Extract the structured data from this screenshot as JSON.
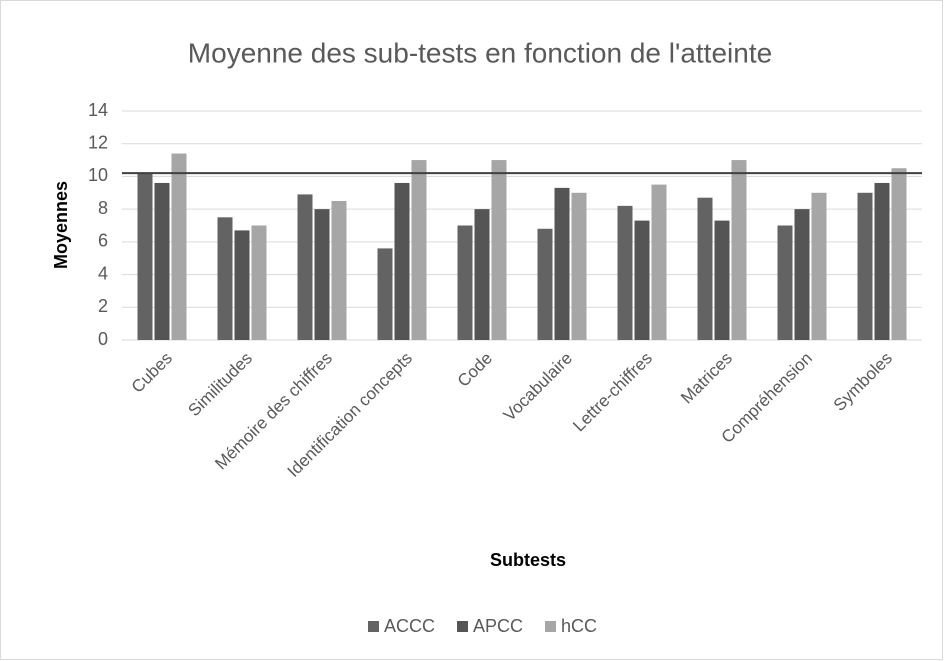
{
  "chart_data": {
    "type": "bar",
    "title": "Moyenne des sub-tests en fonction de l'atteinte",
    "x_label": "Subtests",
    "y_label": "Moyennes",
    "categories": [
      "Cubes",
      "Similitudes",
      "Mémoire des chiffres",
      "Identification concepts",
      "Code",
      "Vocabulaire",
      "Lettre-chiffres",
      "Matrices",
      "Compréhension",
      "Symboles"
    ],
    "series": [
      {
        "name": "ACCC",
        "color": "#636363",
        "values": [
          10.2,
          7.5,
          8.9,
          5.6,
          7.0,
          6.8,
          8.2,
          8.7,
          7.0,
          9.0
        ]
      },
      {
        "name": "APCC",
        "color": "#555555",
        "values": [
          9.6,
          6.7,
          8.0,
          9.6,
          8.0,
          9.3,
          7.3,
          7.3,
          8.0,
          9.6
        ]
      },
      {
        "name": "hCC",
        "color": "#a6a6a6",
        "values": [
          11.4,
          7.0,
          8.5,
          11.0,
          11.0,
          9.0,
          9.5,
          11.0,
          9.0,
          10.5
        ]
      }
    ],
    "reference_line": 10.2,
    "reference_color": "#404040",
    "ylim": [
      0,
      14
    ],
    "yticks": [
      0,
      2,
      4,
      6,
      8,
      10,
      12,
      14
    ],
    "grid": true,
    "legend": "bottom"
  }
}
